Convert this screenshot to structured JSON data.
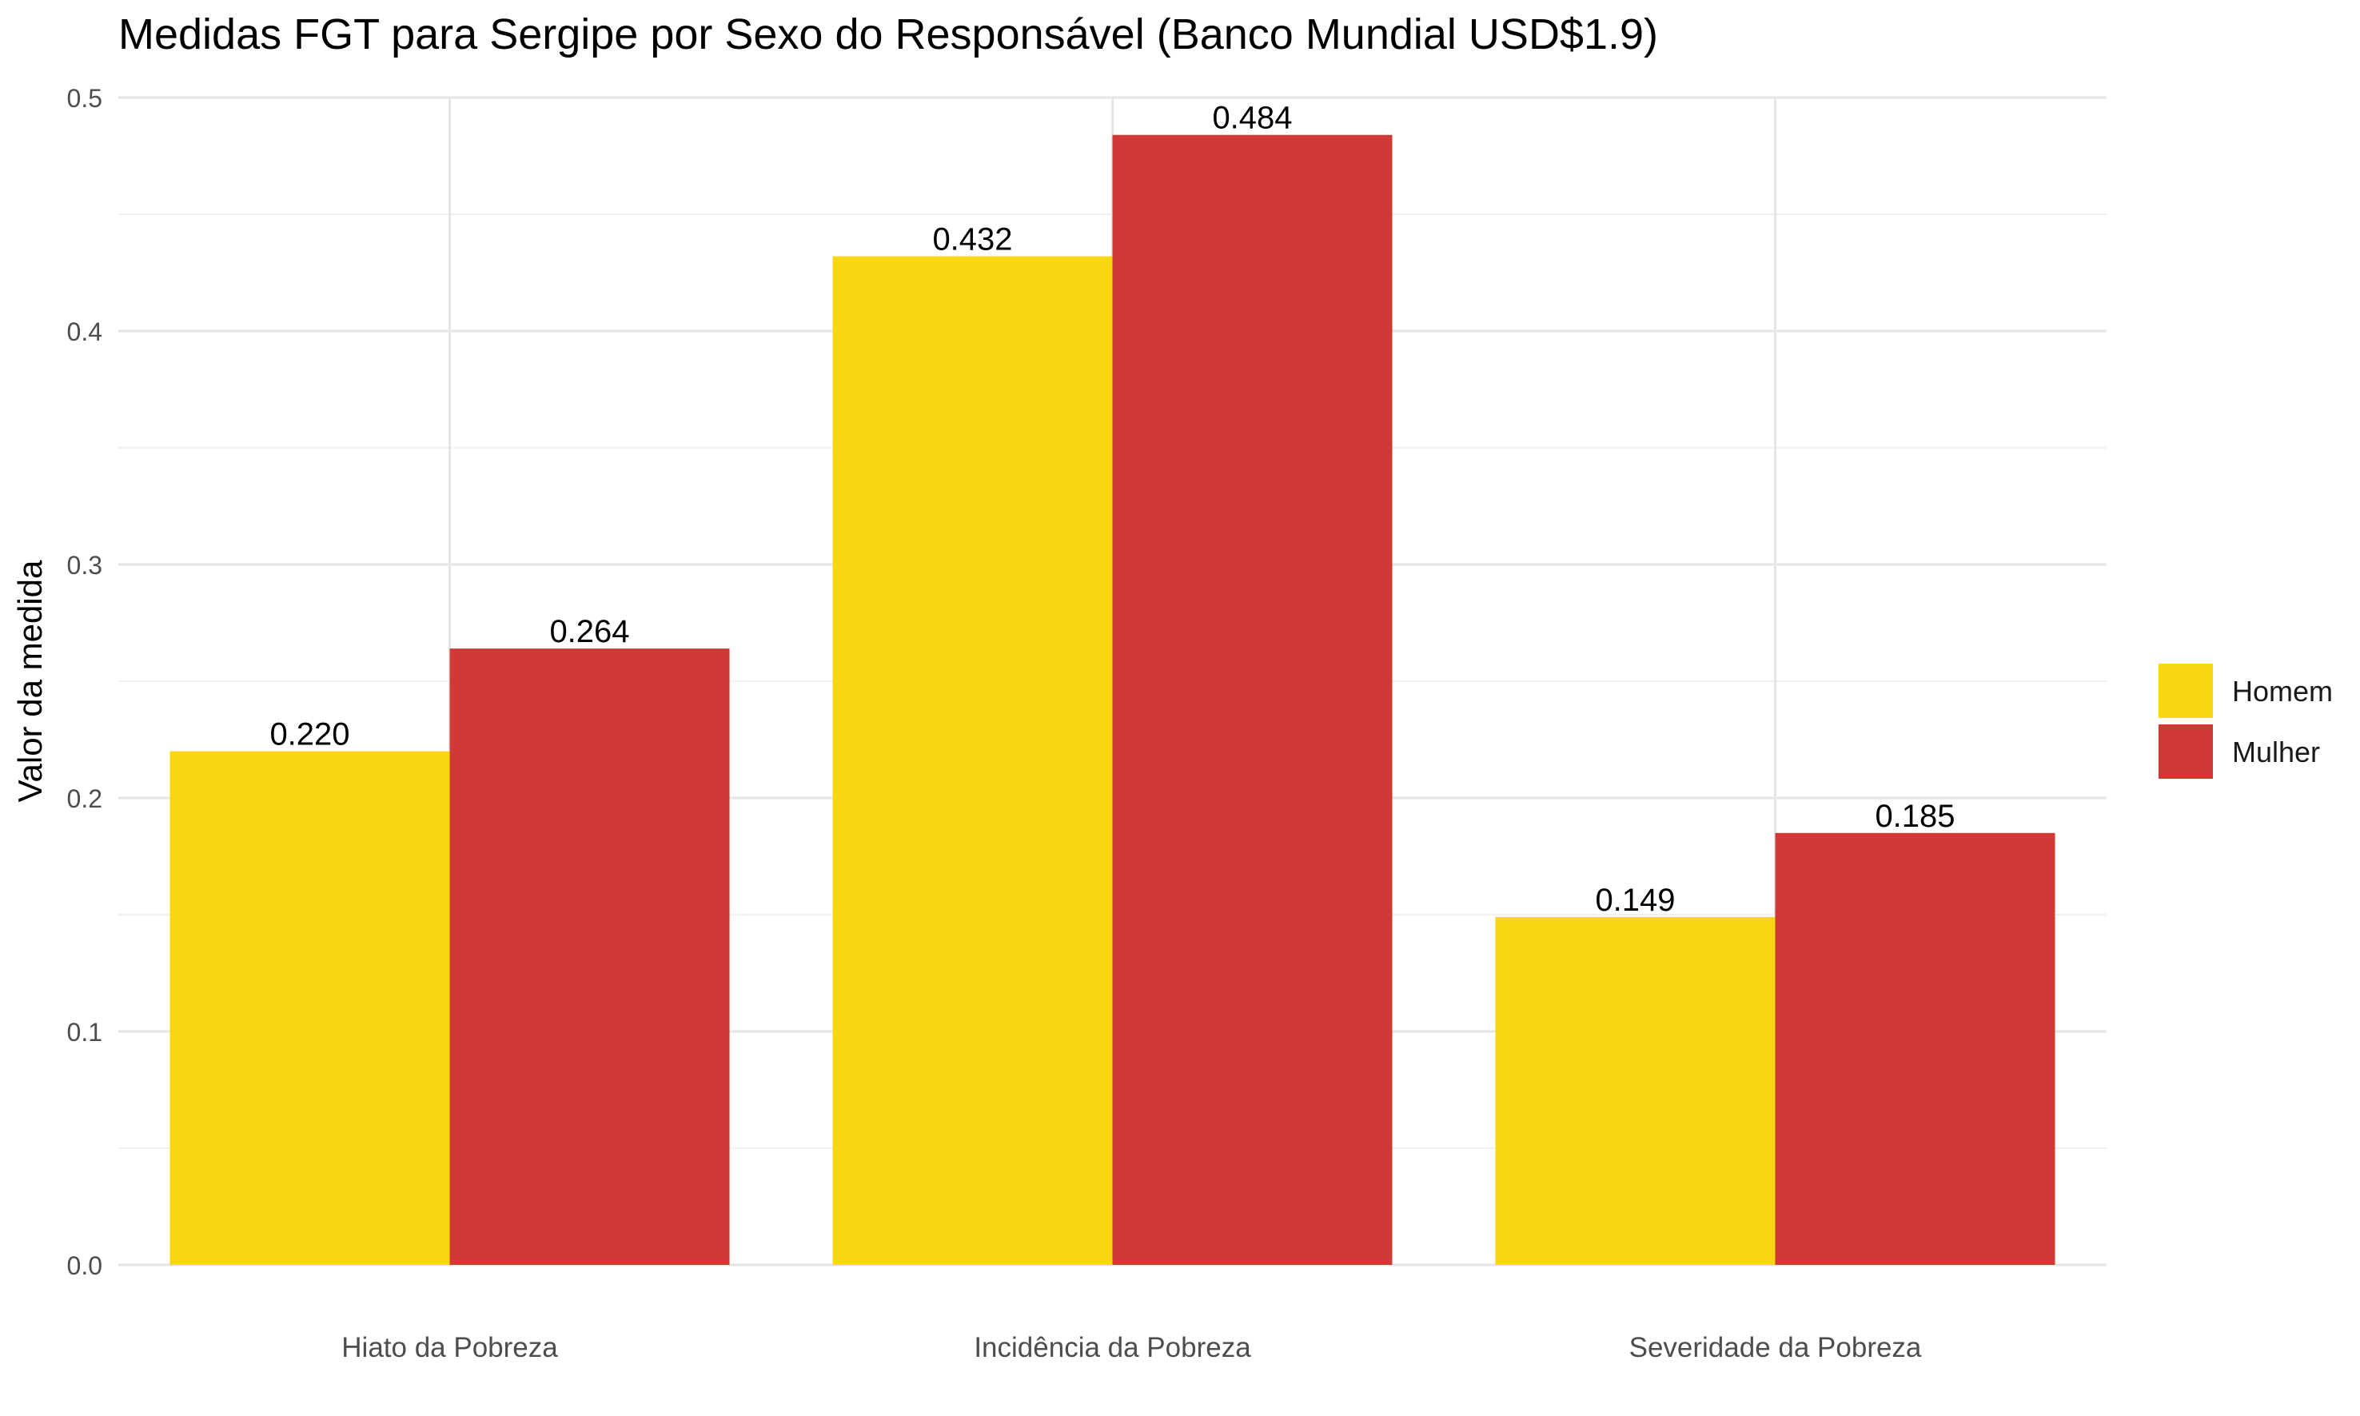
{
  "chart_data": {
    "type": "bar",
    "title": "Medidas FGT para Sergipe por Sexo do Responsável (Banco Mundial USD$1.9)",
    "xlabel": "",
    "ylabel": "Valor da medida",
    "categories": [
      "Hiato da Pobreza",
      "Incidência da Pobreza",
      "Severidade da Pobreza"
    ],
    "series": [
      {
        "name": "Homem",
        "color": "#F8D612",
        "values": [
          0.22,
          0.432,
          0.149
        ],
        "labels": [
          "0.220",
          "0.432",
          "0.149"
        ]
      },
      {
        "name": "Mulher",
        "color": "#CF3A37",
        "values": [
          0.264,
          0.484,
          0.185
        ],
        "labels": [
          "0.264",
          "0.484",
          "0.185"
        ]
      }
    ],
    "ylim": [
      0,
      0.5
    ],
    "yticks": [
      "0.0",
      "0.1",
      "0.2",
      "0.3",
      "0.4",
      "0.5"
    ],
    "grid": true,
    "legend_position": "right"
  }
}
